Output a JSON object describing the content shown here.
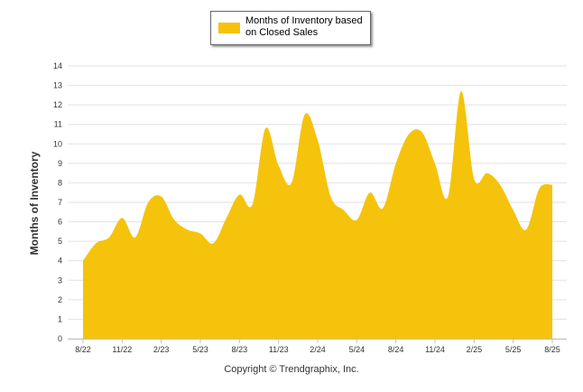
{
  "chart_data": {
    "type": "area",
    "ylabel": "Months of Inventory",
    "xlabel": "",
    "ylim": [
      0,
      14
    ],
    "yticks": [
      "0",
      "1",
      "2",
      "3",
      "4",
      "5",
      "6",
      "7",
      "8",
      "9",
      "10",
      "11",
      "12",
      "13",
      "14"
    ],
    "xtick_labels": [
      "8/22",
      "11/22",
      "2/23",
      "5/23",
      "8/23",
      "11/23",
      "2/24",
      "5/24",
      "8/24",
      "11/24",
      "2/25",
      "5/25",
      "8/25"
    ],
    "grid": true,
    "legend_position": "top-center",
    "color": "#F5C30B",
    "series": [
      {
        "name": "Months of Inventory based on Closed Sales",
        "values": [
          4.0,
          4.9,
          5.2,
          6.2,
          5.2,
          7.0,
          7.3,
          6.1,
          5.6,
          5.4,
          4.9,
          6.2,
          7.4,
          6.9,
          10.8,
          8.9,
          8.0,
          11.5,
          10.2,
          7.3,
          6.6,
          6.1,
          7.5,
          6.7,
          9.0,
          10.5,
          10.6,
          9.0,
          7.3,
          12.7,
          8.2,
          8.5,
          7.9,
          6.6,
          5.6,
          7.7,
          7.9
        ]
      }
    ]
  },
  "legend": {
    "label": "Months of Inventory based on Closed Sales"
  },
  "footer": {
    "copyright": "Copyright © Trendgraphix, Inc."
  }
}
